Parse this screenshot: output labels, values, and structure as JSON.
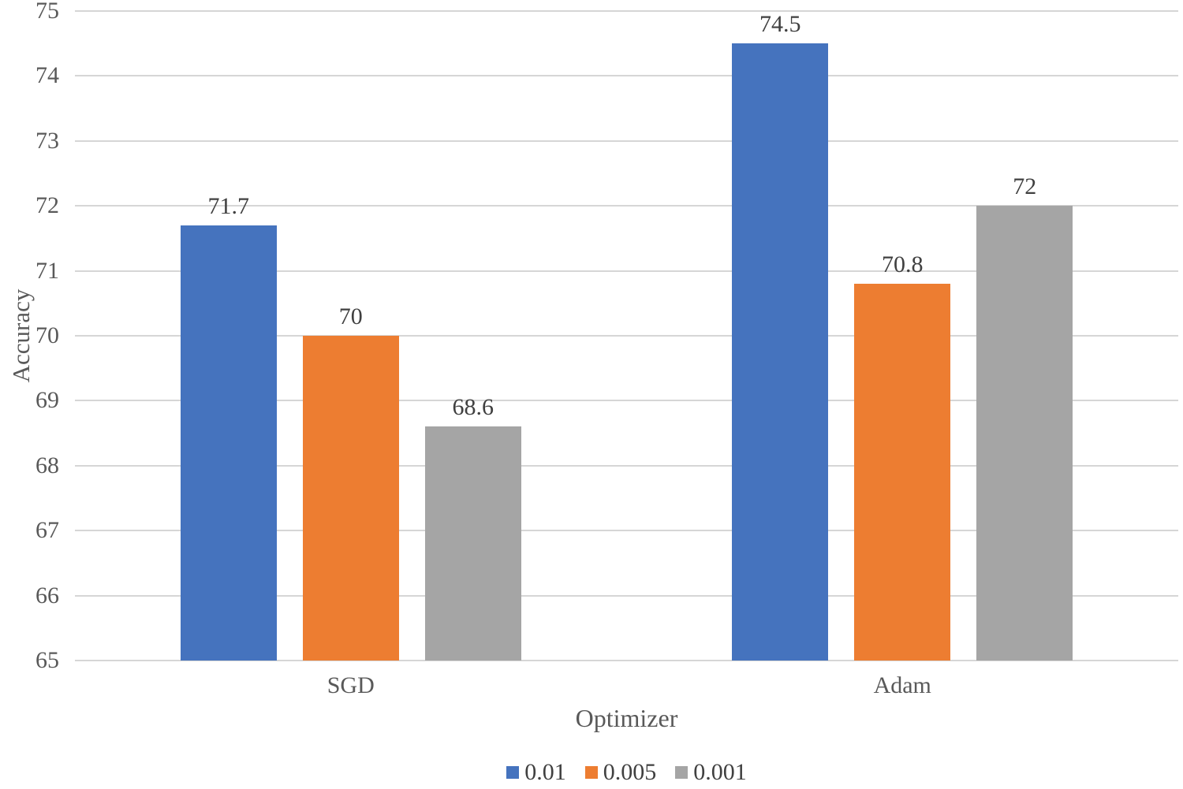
{
  "chart_data": {
    "type": "bar",
    "title": "",
    "categories": [
      "SGD",
      "Adam"
    ],
    "series": [
      {
        "name": "0.01",
        "color": "#4573BE",
        "values": [
          71.7,
          74.5
        ]
      },
      {
        "name": "0.005",
        "color": "#ED7D31",
        "values": [
          70,
          70.8
        ]
      },
      {
        "name": "0.001",
        "color": "#A5A5A5",
        "values": [
          68.6,
          72
        ]
      }
    ],
    "data_labels": [
      [
        "71.7",
        "70",
        "68.6"
      ],
      [
        "74.5",
        "70.8",
        "72"
      ]
    ],
    "xlabel": "Optimizer",
    "ylabel": "Accuracy",
    "ylim": [
      65,
      75
    ],
    "yticks": [
      65,
      66,
      67,
      68,
      69,
      70,
      71,
      72,
      73,
      74,
      75
    ],
    "grid": true,
    "legend_position": "bottom",
    "legend": [
      "0.01",
      "0.005",
      "0.001"
    ]
  },
  "style": {
    "grid_color": "#D6D6D6",
    "tick_label_color": "#595959",
    "data_label_color": "#404040",
    "axis_title_color": "#595959",
    "background": "#FFFFFF"
  }
}
